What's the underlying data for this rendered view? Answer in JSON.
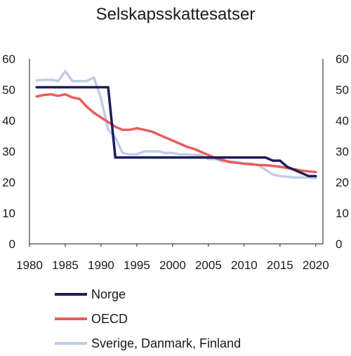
{
  "chart_data": {
    "type": "line",
    "title": "Selskapsskattesatser",
    "xlabel": "",
    "ylabel": "",
    "xlim": [
      1980,
      2021
    ],
    "ylim": [
      0,
      60
    ],
    "x_ticks": [
      "1980",
      "1985",
      "1990",
      "1995",
      "2000",
      "2005",
      "2010",
      "2015",
      "2020"
    ],
    "y_ticks_left": [
      "0",
      "10",
      "20",
      "30",
      "40",
      "50",
      "60"
    ],
    "y_ticks_right": [
      "0",
      "10",
      "20",
      "30",
      "40",
      "50",
      "60"
    ],
    "grid": false,
    "legend": "bottom-left",
    "series": [
      {
        "name": "Norge",
        "color": "#1c1e5a",
        "x": [
          1981,
          1982,
          1983,
          1984,
          1985,
          1986,
          1987,
          1988,
          1989,
          1990,
          1991,
          1992,
          1993,
          1994,
          1995,
          1996,
          1997,
          1998,
          1999,
          2000,
          2001,
          2002,
          2003,
          2004,
          2005,
          2006,
          2007,
          2008,
          2009,
          2010,
          2011,
          2012,
          2013,
          2014,
          2015,
          2016,
          2017,
          2018,
          2019,
          2020
        ],
        "values": [
          50.8,
          50.8,
          50.8,
          50.8,
          50.8,
          50.8,
          50.8,
          50.8,
          50.8,
          50.8,
          50.8,
          28,
          28,
          28,
          28,
          28,
          28,
          28,
          28,
          28,
          28,
          28,
          28,
          28,
          28,
          28,
          28,
          28,
          28,
          28,
          28,
          28,
          28,
          27,
          27,
          25,
          24,
          23,
          22,
          22
        ]
      },
      {
        "name": "OECD",
        "color": "#e85c5c",
        "x": [
          1981,
          1982,
          1983,
          1984,
          1985,
          1986,
          1987,
          1988,
          1989,
          1990,
          1991,
          1992,
          1993,
          1994,
          1995,
          1996,
          1997,
          1998,
          1999,
          2000,
          2001,
          2002,
          2003,
          2004,
          2005,
          2006,
          2007,
          2008,
          2009,
          2010,
          2011,
          2012,
          2013,
          2014,
          2015,
          2016,
          2017,
          2018,
          2019,
          2020
        ],
        "values": [
          47.8,
          48.3,
          48.5,
          48,
          48.5,
          47.5,
          47,
          44.5,
          42.5,
          41,
          39.5,
          38,
          37,
          37,
          37.5,
          37,
          36.5,
          35.5,
          34.5,
          33.5,
          32.5,
          31.5,
          30.8,
          29.8,
          28.8,
          27.8,
          27.2,
          26.5,
          26.3,
          26,
          25.8,
          25.6,
          25.5,
          25.3,
          25,
          24.6,
          24.2,
          23.8,
          23.5,
          23.3
        ]
      },
      {
        "name": "Sverige, Danmark, Finland",
        "color": "#bfcde8",
        "x": [
          1981,
          1982,
          1983,
          1984,
          1985,
          1986,
          1987,
          1988,
          1989,
          1990,
          1991,
          1992,
          1993,
          1994,
          1995,
          1996,
          1997,
          1998,
          1999,
          2000,
          2001,
          2002,
          2003,
          2004,
          2005,
          2006,
          2007,
          2008,
          2009,
          2010,
          2011,
          2012,
          2013,
          2014,
          2015,
          2016,
          2017,
          2018,
          2019,
          2020
        ],
        "values": [
          53,
          53.2,
          53.2,
          52.8,
          56,
          52.8,
          52.8,
          52.8,
          54,
          47,
          37,
          34.5,
          29.5,
          29,
          29,
          30,
          30,
          30,
          29.5,
          29.5,
          29,
          29,
          28.8,
          28.8,
          27.5,
          27.5,
          26.8,
          26.8,
          26.5,
          26,
          26,
          25.5,
          24,
          22.5,
          22,
          21.8,
          21.5,
          21.5,
          21.5,
          21.3
        ]
      }
    ]
  }
}
